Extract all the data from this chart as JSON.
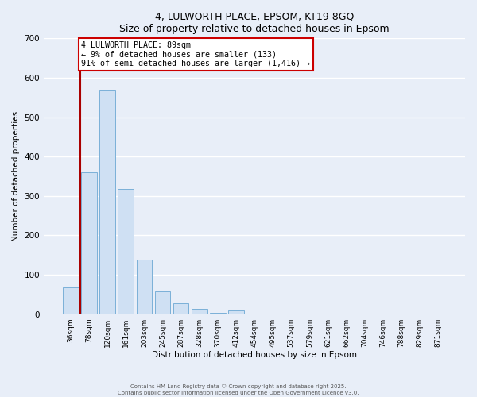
{
  "title": "4, LULWORTH PLACE, EPSOM, KT19 8GQ",
  "subtitle": "Size of property relative to detached houses in Epsom",
  "xlabel": "Distribution of detached houses by size in Epsom",
  "ylabel": "Number of detached properties",
  "bar_labels": [
    "36sqm",
    "78sqm",
    "120sqm",
    "161sqm",
    "203sqm",
    "245sqm",
    "287sqm",
    "328sqm",
    "370sqm",
    "412sqm",
    "454sqm",
    "495sqm",
    "537sqm",
    "579sqm",
    "621sqm",
    "662sqm",
    "704sqm",
    "746sqm",
    "788sqm",
    "829sqm",
    "871sqm"
  ],
  "bar_values": [
    68,
    360,
    570,
    318,
    138,
    57,
    27,
    14,
    3,
    10,
    2,
    0,
    0,
    0,
    0,
    0,
    0,
    0,
    0,
    0,
    0
  ],
  "bar_color": "#cfe0f3",
  "bar_edgecolor": "#7ab0d8",
  "vline_x": 0.5,
  "vline_color": "#aa0000",
  "property_label": "4 LULWORTH PLACE: 89sqm",
  "annotation_line1": "← 9% of detached houses are smaller (133)",
  "annotation_line2": "91% of semi-detached houses are larger (1,416) →",
  "annotation_box_facecolor": "#ffffff",
  "annotation_box_edgecolor": "#cc0000",
  "ylim": [
    0,
    700
  ],
  "yticks": [
    0,
    100,
    200,
    300,
    400,
    500,
    600,
    700
  ],
  "background_color": "#e8eef8",
  "grid_color": "#ffffff",
  "footer_line1": "Contains HM Land Registry data © Crown copyright and database right 2025.",
  "footer_line2": "Contains public sector information licensed under the Open Government Licence v3.0."
}
